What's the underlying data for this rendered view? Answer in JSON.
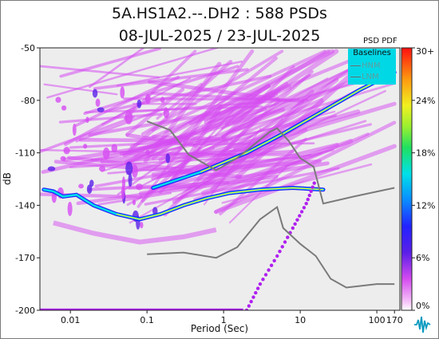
{
  "chart_data": {
    "type": "heatmap",
    "title": "5A.HS1A2.--.DH2 : 588 PSDs",
    "subtitle": "08-JUL-2025 / 23-JUL-2025",
    "xlabel": "Period (Sec)",
    "ylabel": "dB",
    "x_scale": "log",
    "xlim": [
      0.004,
      200
    ],
    "ylim": [
      -200,
      -50
    ],
    "x_ticks": [
      {
        "value": 0.01,
        "label": "0.01"
      },
      {
        "value": 0.1,
        "label": "0.1"
      },
      {
        "value": 1,
        "label": "1"
      },
      {
        "value": 10,
        "label": "10"
      },
      {
        "value": 100,
        "label": "100"
      },
      {
        "value": 170,
        "label": "170"
      }
    ],
    "y_ticks": [
      -50,
      -80,
      -110,
      -140,
      -170,
      -200
    ],
    "colorbar": {
      "label": "PSD PDF",
      "range": [
        0,
        30
      ],
      "ticks": [
        "0%",
        "6%",
        "12%",
        "18%",
        "24%",
        "30+"
      ]
    },
    "legend": {
      "title": "Baselines",
      "placement": "top-right",
      "items": [
        "HNM",
        "LNM"
      ]
    },
    "colors": {
      "bg": "#ededed",
      "density_low": "#d64cf2",
      "density_mid": "#2a2aff",
      "density_high": "#ffef20",
      "baseline": "#7a7a7a",
      "dotted": "#b020f0"
    },
    "series": [
      {
        "name": "HNM",
        "points": [
          [
            0.1,
            -92
          ],
          [
            0.2,
            -97
          ],
          [
            0.35,
            -111
          ],
          [
            0.8,
            -120
          ],
          [
            1.5,
            -113
          ],
          [
            4,
            -98
          ],
          [
            5,
            -96
          ],
          [
            7,
            -103
          ],
          [
            10,
            -113
          ],
          [
            15,
            -118
          ],
          [
            20,
            -139
          ],
          [
            50,
            -135
          ],
          [
            170,
            -130
          ]
        ]
      },
      {
        "name": "LNM",
        "points": [
          [
            0.1,
            -168
          ],
          [
            0.3,
            -167
          ],
          [
            0.8,
            -170
          ],
          [
            1.5,
            -164
          ],
          [
            3,
            -148
          ],
          [
            5,
            -141
          ],
          [
            6,
            -153
          ],
          [
            10,
            -162
          ],
          [
            16,
            -169
          ],
          [
            25,
            -182
          ],
          [
            40,
            -187
          ],
          [
            100,
            -185
          ],
          [
            170,
            -185
          ]
        ]
      },
      {
        "points": [
          [
            0.0045,
            -131
          ],
          [
            0.006,
            -132
          ],
          [
            0.008,
            -135
          ],
          [
            0.012,
            -134
          ],
          [
            0.02,
            -140
          ],
          [
            0.04,
            -145
          ],
          [
            0.08,
            -148
          ],
          [
            0.15,
            -145
          ],
          [
            0.3,
            -140
          ],
          [
            0.6,
            -136
          ],
          [
            1.2,
            -133
          ],
          [
            3,
            -131
          ],
          [
            8,
            -130
          ],
          [
            20,
            -131
          ]
        ]
      },
      {
        "points": [
          [
            0.12,
            -130
          ],
          [
            0.5,
            -121
          ],
          [
            2,
            -110
          ],
          [
            6,
            -99
          ],
          [
            20,
            -86
          ],
          [
            60,
            -74
          ],
          [
            170,
            -64
          ]
        ]
      },
      {
        "points": [
          [
            2,
            -200
          ],
          [
            3,
            -185
          ],
          [
            5,
            -169
          ],
          [
            8,
            -153
          ],
          [
            12,
            -139
          ],
          [
            16,
            -125
          ]
        ]
      }
    ]
  }
}
